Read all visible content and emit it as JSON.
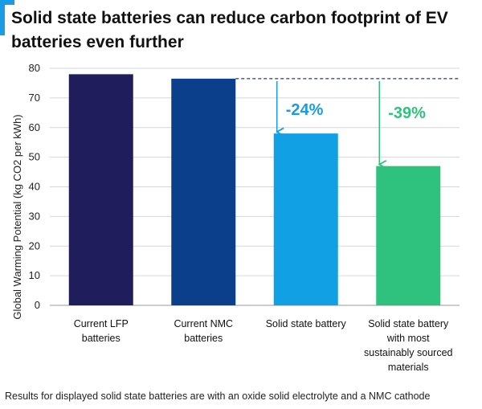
{
  "title": "Solid state batteries can reduce carbon footprint of EV batteries even further",
  "footnote": "Results for displayed solid state batteries are with an oxide solid electrolyte and a NMC cathode",
  "chart_data": {
    "type": "bar",
    "ylabel": "Global Warming Potential (kg CO2 per kWh)",
    "xlabel": "",
    "ylim": [
      0,
      80
    ],
    "yticks": [
      0,
      10,
      20,
      30,
      40,
      50,
      60,
      70,
      80
    ],
    "grid": true,
    "categories": [
      [
        "Current LFP",
        "batteries"
      ],
      [
        "Current NMC",
        "batteries"
      ],
      [
        "Solid state battery"
      ],
      [
        "Solid state battery",
        "with most",
        "sustainably sourced",
        "materials"
      ]
    ],
    "values": [
      78,
      76.5,
      58,
      47
    ],
    "colors": [
      "#1f1d5c",
      "#0b3f8c",
      "#12a0e4",
      "#2ec27e"
    ],
    "reference_line": {
      "value": 76.5,
      "color": "#1c3a8f",
      "style": "dashed"
    },
    "annotations": [
      {
        "text": "-24%",
        "target_index": 2,
        "color": "#1a9be6"
      },
      {
        "text": "-39%",
        "target_index": 3,
        "color": "#2ec27e"
      }
    ]
  }
}
